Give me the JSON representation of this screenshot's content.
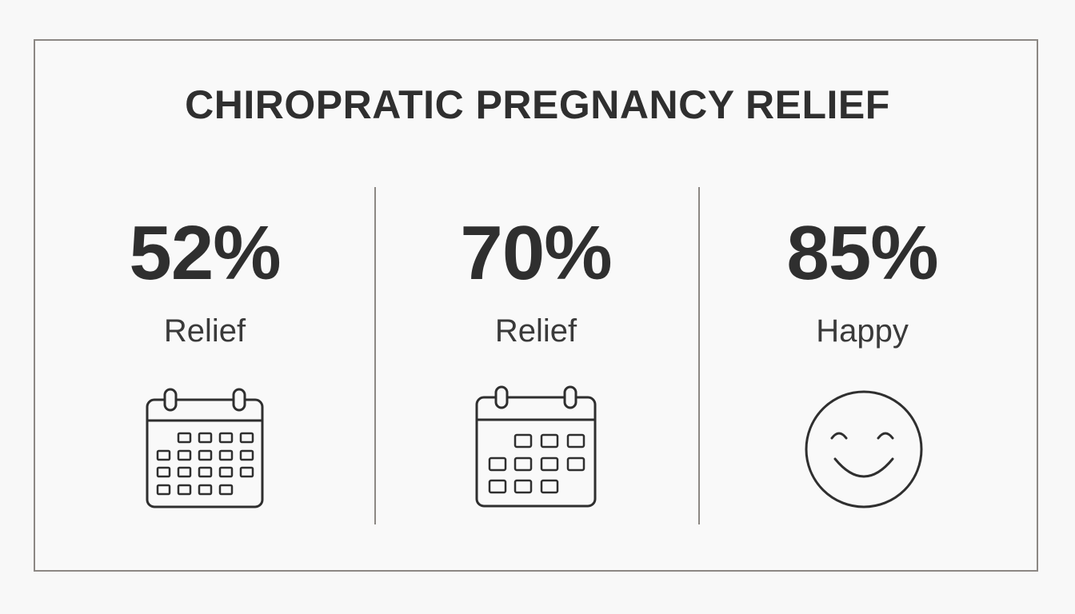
{
  "title": "CHIROPRATIC PREGNANCY RELIEF",
  "stats": [
    {
      "value": "52%",
      "label": "Relief",
      "icon": "calendar-icon"
    },
    {
      "value": "70%",
      "label": "Relief",
      "icon": "calendar-icon"
    },
    {
      "value": "85%",
      "label": "Happy",
      "icon": "smiley-face-icon"
    }
  ],
  "colors": {
    "background": "#f8f8f8",
    "border": "#8c8884",
    "text": "#2f2f2f"
  }
}
